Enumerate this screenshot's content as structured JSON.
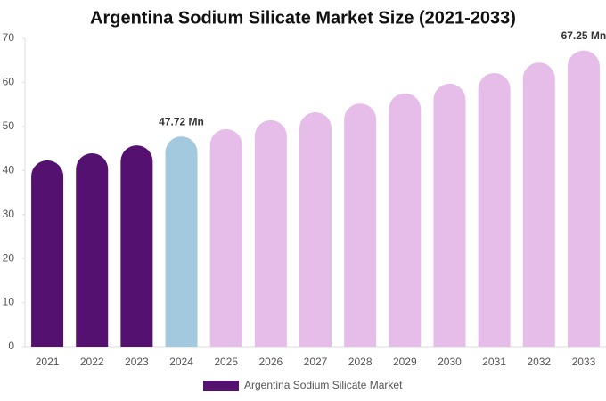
{
  "chart_data": {
    "type": "bar",
    "title": "Argentina Sodium Silicate Market Size (2021-2033)",
    "categories": [
      "2021",
      "2022",
      "2023",
      "2024",
      "2025",
      "2026",
      "2027",
      "2028",
      "2029",
      "2030",
      "2031",
      "2032",
      "2033"
    ],
    "series": [
      {
        "name": "Argentina Sodium Silicate Market",
        "color": "#541170",
        "values": [
          42.3,
          43.9,
          45.7,
          47.72,
          49.4,
          51.4,
          53.2,
          55.2,
          57.5,
          59.7,
          62.1,
          64.5,
          67.25
        ],
        "colors": [
          "#541170",
          "#541170",
          "#541170",
          "#a3c9de",
          "#e6bde8",
          "#e6bde8",
          "#e6bde8",
          "#e6bde8",
          "#e6bde8",
          "#e6bde8",
          "#e6bde8",
          "#e6bde8",
          "#e6bde8"
        ],
        "value_labels": [
          null,
          null,
          null,
          "47.72 Mn",
          null,
          null,
          null,
          null,
          null,
          null,
          null,
          null,
          "67.25 Mn"
        ]
      }
    ],
    "ylim": [
      0,
      70
    ],
    "yticks": [
      0,
      10,
      20,
      30,
      40,
      50,
      60,
      70
    ],
    "legend": "bottom"
  }
}
